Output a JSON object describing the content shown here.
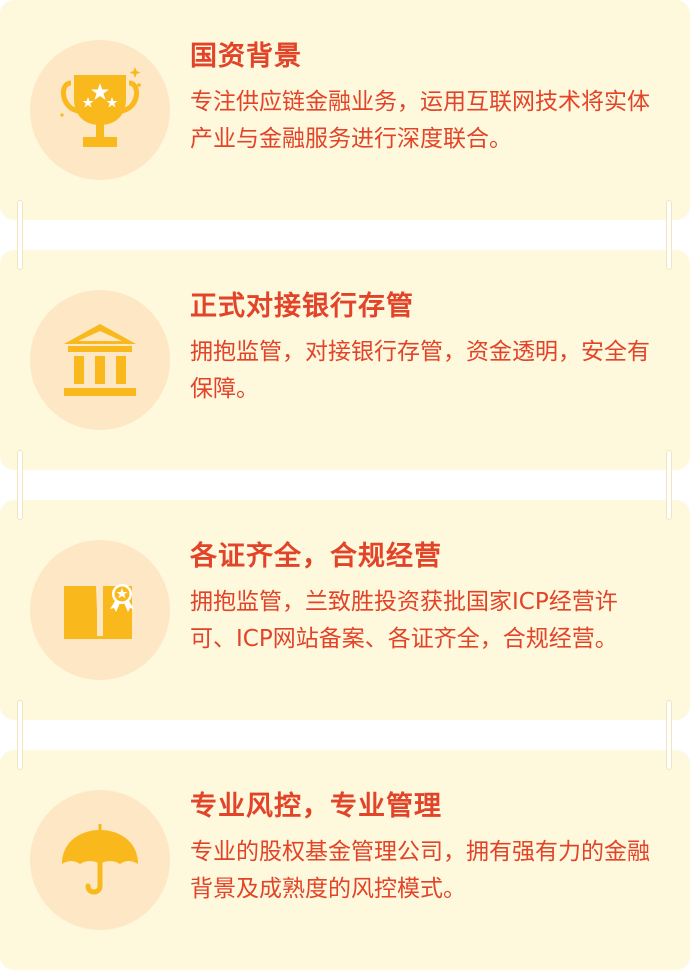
{
  "features": [
    {
      "icon": "trophy-icon",
      "title": "国资背景",
      "description": "专注供应链金融业务，运用互联网技术将实体产业与金融服务进行深度联合。"
    },
    {
      "icon": "bank-icon",
      "title": "正式对接银行存管",
      "description": "拥抱监管，对接银行存管，资金透明，安全有保障。"
    },
    {
      "icon": "certificate-book-icon",
      "title": "各证齐全，合规经营",
      "description": "拥抱监管，兰致胜投资获批国家ICP经营许可、ICP网站备案、各证齐全，合规经营。"
    },
    {
      "icon": "umbrella-icon",
      "title": "专业风控，专业管理",
      "description": "专业的股权基金管理公司，拥有强有力的金融背景及成熟度的风控模式。"
    }
  ],
  "colors": {
    "card_background": "#fef8dc",
    "icon_circle": "#fde7c4",
    "icon_fill": "#f9b81b",
    "text": "#e2442a"
  }
}
